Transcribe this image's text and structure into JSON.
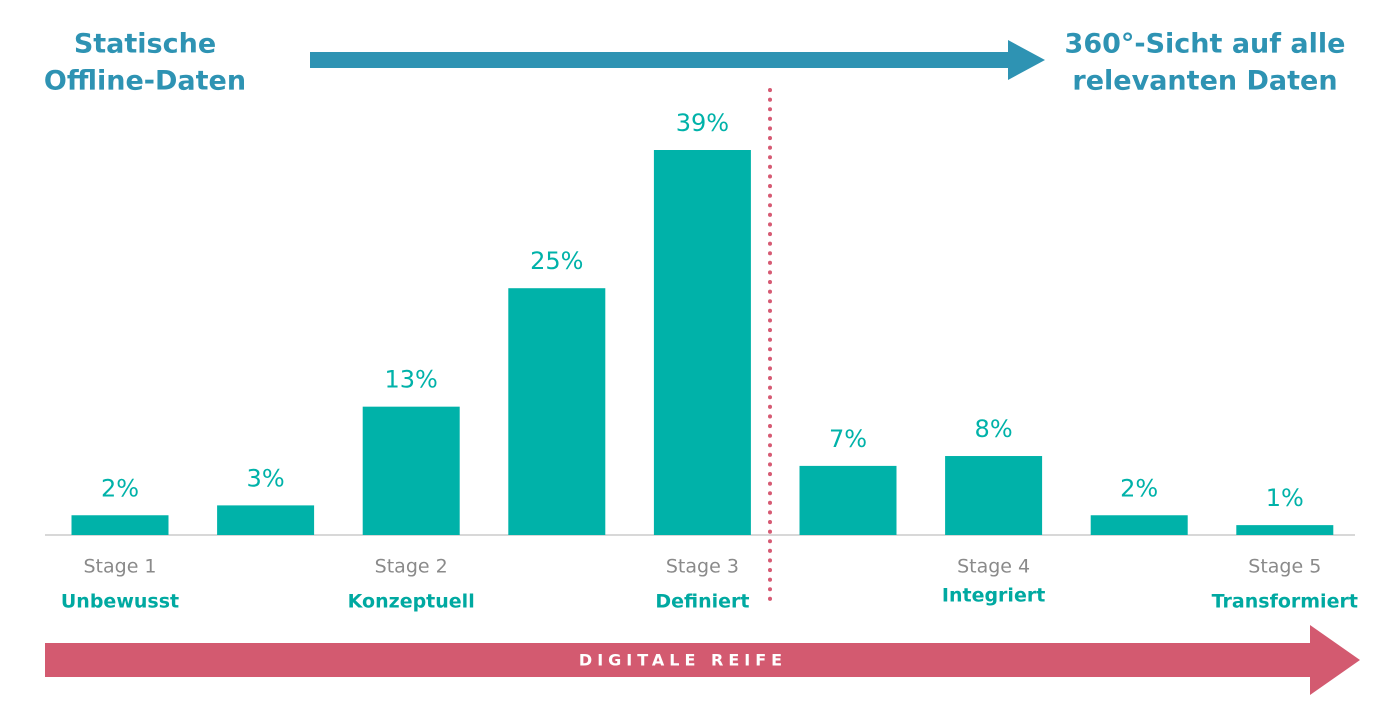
{
  "chart_data": {
    "type": "bar",
    "left_label": [
      "Statische",
      "Offline-Daten"
    ],
    "right_label": [
      "360°-Sicht auf alle",
      "relevanten Daten"
    ],
    "bottom_label": "DIGITALE REIFE",
    "categories": [
      "Stage 1",
      null,
      "Stage 2",
      null,
      "Stage 3",
      null,
      "Stage 4",
      null,
      "Stage 5"
    ],
    "stage_names": [
      "Unbewusst",
      null,
      "Konzeptuell",
      null,
      "Definiert",
      null,
      "Integriert",
      null,
      "Transformiert"
    ],
    "values": [
      2,
      3,
      13,
      25,
      39,
      7,
      8,
      2,
      1
    ],
    "value_labels": [
      "2%",
      "3%",
      "13%",
      "25%",
      "39%",
      "7%",
      "8%",
      "2%",
      "1%"
    ],
    "color": "#00b2a9"
  }
}
